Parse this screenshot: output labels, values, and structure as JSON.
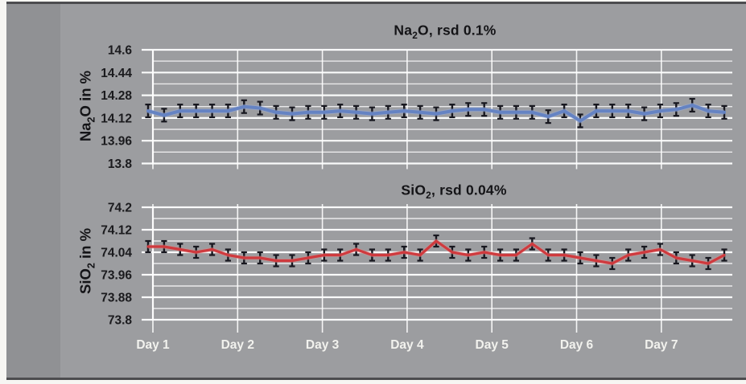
{
  "style": {
    "page_bg": "#f7f6f3",
    "panel_bg": "#9c9da0",
    "panel_left_band_bg": "#909194",
    "panel_border": "#4c4c4f",
    "grid_color": "#ffffff",
    "axis_text_color": "#1b1b1e",
    "day_label_color": "#f2f2ee",
    "error_bar_color": "#17171f"
  },
  "chart_data": [
    {
      "id": "na2o",
      "type": "line",
      "title": "Na₂O, rsd 0.1%",
      "title_parts": {
        "pre": "Na",
        "sub": "2",
        "post": "O, rsd 0.1%"
      },
      "ylabel": "Na₂O in %",
      "ylabel_parts": {
        "pre": "Na",
        "sub": "2",
        "post": "O in %"
      },
      "xlabel": "",
      "ylim": [
        13.8,
        14.6
      ],
      "ytick_step": 0.16,
      "minor_step": 0.08,
      "ytick_labels": [
        "14.6",
        "14.44",
        "14.28",
        "14.12",
        "13.96",
        "13.8"
      ],
      "x_tick_labels": [
        "Day 1",
        "Day 2",
        "Day 3",
        "Day 4",
        "Day 5",
        "Day 6",
        "Day 7"
      ],
      "show_x_labels": false,
      "grid": true,
      "legend": "none",
      "error_bar": 0.045,
      "n_points": 37,
      "series": [
        {
          "name": "Na2O",
          "color": "#6583c3",
          "highlight": "#9db0dc",
          "values": [
            14.17,
            14.14,
            14.17,
            14.17,
            14.17,
            14.17,
            14.2,
            14.19,
            14.16,
            14.15,
            14.16,
            14.16,
            14.17,
            14.16,
            14.15,
            14.16,
            14.17,
            14.16,
            14.15,
            14.17,
            14.18,
            14.18,
            14.16,
            14.16,
            14.16,
            14.13,
            14.17,
            14.1,
            14.17,
            14.17,
            14.17,
            14.15,
            14.17,
            14.18,
            14.21,
            14.17,
            14.16
          ]
        }
      ]
    },
    {
      "id": "sio2",
      "type": "line",
      "title": "SiO₂, rsd 0.04%",
      "title_parts": {
        "pre": "SiO",
        "sub": "2",
        "post": ", rsd 0.04%"
      },
      "ylabel": "SiO₂ in %",
      "ylabel_parts": {
        "pre": "SiO",
        "sub": "2",
        "post": " in %"
      },
      "xlabel": "",
      "ylim": [
        73.8,
        74.2
      ],
      "ytick_step": 0.08,
      "minor_step": 0.04,
      "ytick_labels": [
        "74.2",
        "74.12",
        "74.04",
        "73.96",
        "73.88",
        "73.8"
      ],
      "x_tick_labels": [
        "Day 1",
        "Day 2",
        "Day 3",
        "Day 4",
        "Day 5",
        "Day 6",
        "Day 7"
      ],
      "show_x_labels": true,
      "grid": true,
      "legend": "none",
      "error_bar": 0.02,
      "n_points": 37,
      "series": [
        {
          "name": "SiO2",
          "color": "#cf3a3e",
          "highlight": "#dd8d8d",
          "values": [
            74.06,
            74.06,
            74.05,
            74.04,
            74.05,
            74.03,
            74.02,
            74.02,
            74.01,
            74.01,
            74.02,
            74.03,
            74.03,
            74.05,
            74.03,
            74.03,
            74.04,
            74.03,
            74.08,
            74.04,
            74.03,
            74.04,
            74.03,
            74.03,
            74.07,
            74.03,
            74.03,
            74.02,
            74.01,
            74.0,
            74.03,
            74.04,
            74.05,
            74.02,
            74.01,
            74.0,
            74.03
          ]
        }
      ]
    }
  ]
}
